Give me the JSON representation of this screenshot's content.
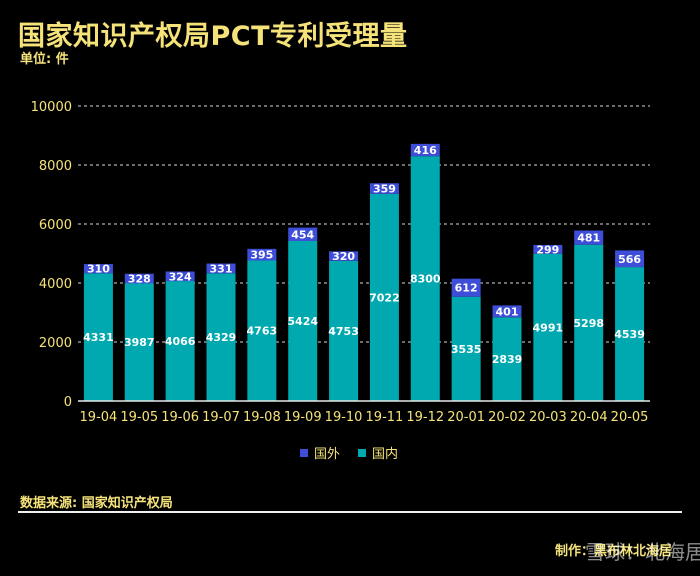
{
  "header": {
    "title": "国家知识产权局PCT专利受理量",
    "unit": "单位: 件"
  },
  "footer": {
    "source": "数据来源: 国家知识产权局",
    "credit": "制作：黑布林北海居",
    "watermark": "雪球：北海居"
  },
  "colors": {
    "domestic": "#00a8b0",
    "foreign": "#3e4ed8",
    "text": "#f5e37a",
    "grid": "#d8d8d8"
  },
  "chart_data": {
    "type": "bar",
    "stacked": true,
    "categories": [
      "19-04",
      "19-05",
      "19-06",
      "19-07",
      "19-08",
      "19-09",
      "19-10",
      "19-11",
      "19-12",
      "20-01",
      "20-02",
      "20-03",
      "20-04",
      "20-05"
    ],
    "series": [
      {
        "name": "国内",
        "values": [
          4331,
          3987,
          4066,
          4329,
          4763,
          5424,
          4753,
          7022,
          8300,
          3535,
          2839,
          4991,
          5298,
          4539
        ]
      },
      {
        "name": "国外",
        "values": [
          310,
          328,
          324,
          331,
          395,
          454,
          320,
          359,
          416,
          612,
          401,
          299,
          481,
          566
        ]
      }
    ],
    "ylim": [
      0,
      10000
    ],
    "yticks": [
      0,
      2000,
      4000,
      6000,
      8000,
      10000
    ],
    "grid": true,
    "legend": "bottom-center"
  }
}
